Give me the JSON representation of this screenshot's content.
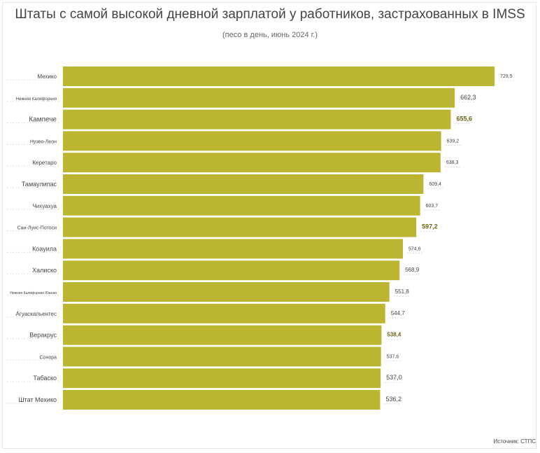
{
  "header": {
    "title": "Штаты с самой высокой дневной зарплатой у работников, застрахованных в IMSS",
    "subtitle": "(песо в день, июнь 2024 г.)"
  },
  "footer": {
    "source": "Источник: СТПС"
  },
  "colors": {
    "bar": "#bcb532",
    "text": "#444444",
    "highlight": "#6b6416"
  },
  "chart_data": {
    "type": "bar",
    "orientation": "horizontal",
    "title": "Штаты с самой высокой дневной зарплатой у работников, застрахованных в IMSS",
    "subtitle": "(песо в день, июнь 2024 г.)",
    "categories": [
      "Мехико",
      "Нижняя Калифорния",
      "Кампече",
      "Нуэво-Леон",
      "Керетаро",
      "Тамаулипас",
      "Чихуахуа",
      "Сан-Луис-Потоси",
      "Коауила",
      "Халиско",
      "Нижняя Калифорния Южная",
      "Агуаскальентес",
      "Веракрус",
      "Сонора",
      "Табаско",
      "Штат Мехико"
    ],
    "values": [
      729.5,
      662.3,
      655.6,
      639.2,
      638.3,
      609.4,
      603.7,
      597.2,
      574.6,
      568.9,
      551.8,
      544.7,
      538.4,
      537.6,
      537.0,
      536.2
    ],
    "value_labels": [
      "729,5",
      "662,3",
      "655,6",
      "639,2",
      "638,3",
      "609,4",
      "603,7",
      "597,2",
      "574,6",
      "568,9",
      "551,8",
      "544,7",
      "538,4",
      "537,6",
      "537,0",
      "536,2"
    ],
    "xlim": [
      0,
      729.5
    ],
    "grid": false,
    "legend": "none"
  }
}
